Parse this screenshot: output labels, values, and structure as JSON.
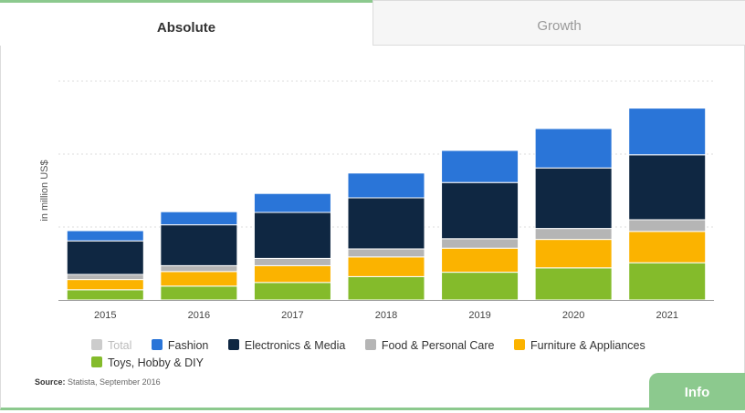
{
  "tabs": {
    "absolute_label": "Absolute",
    "growth_label": "Growth"
  },
  "source": {
    "label": "Source:",
    "text": "Statista, September 2016"
  },
  "info_button": {
    "label": "Info"
  },
  "colors": {
    "total": "#cccccc",
    "fashion": "#2a75d8",
    "electronics": "#0f2742",
    "food": "#b5b5b5",
    "furniture": "#fbb300",
    "toys": "#84bb2b",
    "accent": "#8cc98e"
  },
  "chart_data": {
    "type": "bar",
    "stacked": true,
    "title": "",
    "xlabel": "",
    "ylabel": "in million US$",
    "categories": [
      "2015",
      "2016",
      "2017",
      "2018",
      "2019",
      "2020",
      "2021"
    ],
    "ylim": [
      0,
      300
    ],
    "grid": true,
    "legend_position": "bottom",
    "series": [
      {
        "name": "Toys, Hobby & DIY",
        "color_key": "toys",
        "values": [
          14,
          19,
          24,
          32,
          38,
          44,
          51
        ]
      },
      {
        "name": "Furniture & Appliances",
        "color_key": "furniture",
        "values": [
          14,
          20,
          23,
          27,
          33,
          39,
          43
        ]
      },
      {
        "name": "Food & Personal Care",
        "color_key": "food",
        "values": [
          7,
          8,
          10,
          11,
          13,
          15,
          16
        ]
      },
      {
        "name": "Electronics & Media",
        "color_key": "electronics",
        "values": [
          46,
          56,
          63,
          70,
          77,
          83,
          89
        ]
      },
      {
        "name": "Fashion",
        "color_key": "fashion",
        "values": [
          14,
          18,
          26,
          34,
          44,
          54,
          64
        ]
      }
    ],
    "legend": [
      {
        "name": "Total",
        "color_key": "total",
        "disabled": true
      },
      {
        "name": "Fashion",
        "color_key": "fashion"
      },
      {
        "name": "Electronics & Media",
        "color_key": "electronics"
      },
      {
        "name": "Food & Personal Care",
        "color_key": "food"
      },
      {
        "name": "Furniture & Appliances",
        "color_key": "furniture"
      },
      {
        "name": "Toys, Hobby & DIY",
        "color_key": "toys"
      }
    ]
  }
}
